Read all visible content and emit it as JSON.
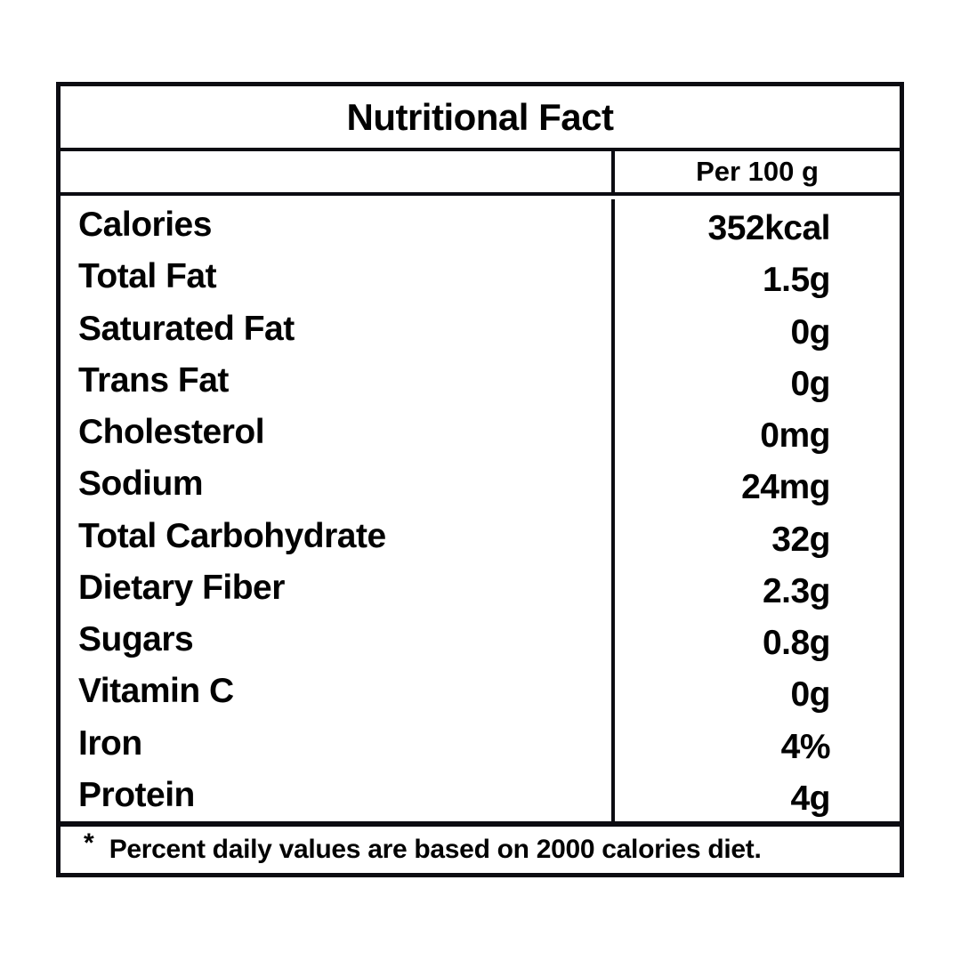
{
  "label_card": {
    "title": "Nutritional Fact",
    "header": {
      "amount_column": "Per 100 g"
    },
    "nutrients": [
      {
        "label": "Calories",
        "value": "352kcal"
      },
      {
        "label": "Total Fat",
        "value": "1.5g"
      },
      {
        "label": "Saturated Fat",
        "value": "0g"
      },
      {
        "label": "Trans Fat",
        "value": "0g"
      },
      {
        "label": "Cholesterol",
        "value": "0mg"
      },
      {
        "label": "Sodium",
        "value": "24mg"
      },
      {
        "label": "Total Carbohydrate",
        "value": "32g"
      },
      {
        "label": "Dietary Fiber",
        "value": "2.3g"
      },
      {
        "label": "Sugars",
        "value": "0.8g"
      },
      {
        "label": "Vitamin C",
        "value": "0g"
      },
      {
        "label": "Iron",
        "value": "4%"
      },
      {
        "label": "Protein",
        "value": "4g"
      }
    ],
    "footnote": {
      "marker": "*",
      "text": "Percent daily values are based on 2000 calories diet."
    }
  },
  "colors": {
    "border": "#0c0c12",
    "text": "#020202",
    "background": "#ffffff"
  }
}
